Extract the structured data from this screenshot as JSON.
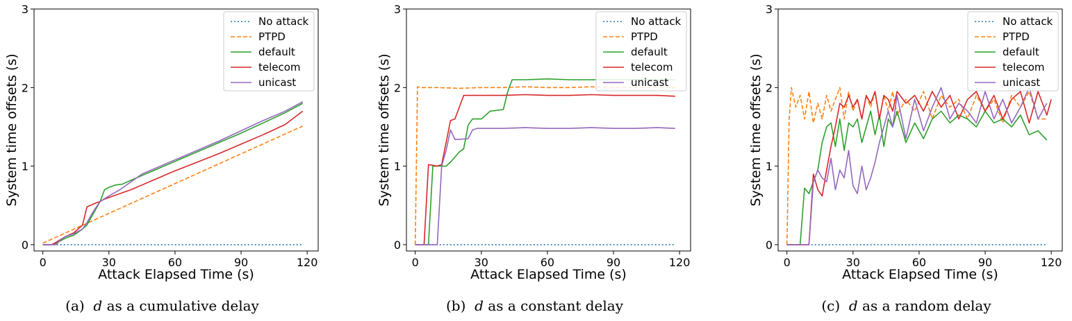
{
  "figure": {
    "series_colors": {
      "No attack": "#1f77b4",
      "PTPD": "#ff7f0e",
      "default": "#2ca02c",
      "telecom": "#d62728",
      "unicast": "#9467bd"
    }
  },
  "chart_data": [
    {
      "type": "line",
      "caption_label": "(a)",
      "caption_var": "d",
      "caption_text": "as a cumulative delay",
      "xlabel": "Attack Elapsed Time (s)",
      "ylabel": "System time offsets (s)",
      "xlim": [
        -4,
        125
      ],
      "ylim": [
        -0.08,
        3
      ],
      "xticks": [
        0,
        30,
        60,
        90,
        120
      ],
      "yticks": [
        0,
        1,
        2,
        3
      ],
      "legend_position": "top-right",
      "series": [
        {
          "name": "No attack",
          "style": "dotted",
          "x": [
            0,
            118
          ],
          "y": [
            0,
            0
          ]
        },
        {
          "name": "PTPD",
          "style": "dashed",
          "x": [
            0,
            118
          ],
          "y": [
            0.02,
            1.51
          ]
        },
        {
          "name": "default",
          "style": "solid",
          "x": [
            0,
            4,
            6,
            10,
            14,
            18,
            20,
            22,
            24,
            26,
            28,
            30,
            33,
            36,
            40,
            45,
            50,
            60,
            70,
            80,
            90,
            100,
            110,
            118
          ],
          "y": [
            0,
            0,
            0.02,
            0.08,
            0.12,
            0.2,
            0.25,
            0.35,
            0.45,
            0.55,
            0.7,
            0.73,
            0.76,
            0.77,
            0.82,
            0.88,
            0.94,
            1.06,
            1.18,
            1.3,
            1.42,
            1.55,
            1.68,
            1.8
          ]
        },
        {
          "name": "telecom",
          "style": "solid",
          "x": [
            0,
            4,
            6,
            10,
            14,
            18,
            20,
            24,
            26,
            28,
            30,
            35,
            40,
            45,
            50,
            60,
            70,
            80,
            90,
            100,
            110,
            118
          ],
          "y": [
            0,
            0,
            0.03,
            0.1,
            0.15,
            0.25,
            0.48,
            0.53,
            0.55,
            0.58,
            0.6,
            0.65,
            0.7,
            0.76,
            0.82,
            0.94,
            1.05,
            1.16,
            1.28,
            1.4,
            1.53,
            1.7
          ]
        },
        {
          "name": "unicast",
          "style": "solid",
          "x": [
            0,
            4,
            6,
            8,
            10,
            14,
            18,
            20,
            22,
            24,
            26,
            30,
            35,
            40,
            45,
            50,
            60,
            70,
            80,
            90,
            100,
            110,
            118
          ],
          "y": [
            0,
            0,
            0,
            0.06,
            0.1,
            0.14,
            0.2,
            0.28,
            0.38,
            0.47,
            0.55,
            0.62,
            0.7,
            0.8,
            0.9,
            0.96,
            1.08,
            1.2,
            1.32,
            1.45,
            1.58,
            1.7,
            1.82
          ]
        }
      ]
    },
    {
      "type": "line",
      "caption_label": "(b)",
      "caption_var": "d",
      "caption_text": "as a constant delay",
      "xlabel": "Attack Elapsed Time (s)",
      "ylabel": "System time offsets (s)",
      "xlim": [
        -4,
        125
      ],
      "ylim": [
        -0.08,
        3
      ],
      "xticks": [
        0,
        30,
        60,
        90,
        120
      ],
      "yticks": [
        0,
        1,
        2,
        3
      ],
      "legend_position": "top-right",
      "series": [
        {
          "name": "No attack",
          "style": "dotted",
          "x": [
            0,
            118
          ],
          "y": [
            0,
            0
          ]
        },
        {
          "name": "PTPD",
          "style": "dashed",
          "x": [
            0,
            1,
            3,
            10,
            20,
            30,
            40,
            50,
            60,
            70,
            80,
            90,
            100,
            110,
            118
          ],
          "y": [
            0,
            2.01,
            2.0,
            2.0,
            1.99,
            2.0,
            2.0,
            2.01,
            2.0,
            2.0,
            2.01,
            2.0,
            2.0,
            2.0,
            2.0
          ]
        },
        {
          "name": "default",
          "style": "solid",
          "x": [
            0,
            6,
            8,
            14,
            16,
            20,
            22,
            24,
            26,
            30,
            32,
            34,
            40,
            42,
            44,
            50,
            60,
            70,
            80,
            90,
            100,
            110,
            118
          ],
          "y": [
            0,
            0,
            1.0,
            1.0,
            1.05,
            1.18,
            1.22,
            1.52,
            1.6,
            1.6,
            1.65,
            1.7,
            1.72,
            1.95,
            2.1,
            2.1,
            2.11,
            2.1,
            2.1,
            2.1,
            2.1,
            2.1,
            2.1
          ]
        },
        {
          "name": "telecom",
          "style": "solid",
          "x": [
            0,
            4,
            6,
            10,
            12,
            14,
            16,
            18,
            20,
            22,
            30,
            40,
            50,
            60,
            70,
            80,
            90,
            100,
            110,
            118
          ],
          "y": [
            0,
            0,
            1.02,
            1.0,
            1.02,
            1.3,
            1.58,
            1.6,
            1.75,
            1.9,
            1.9,
            1.9,
            1.91,
            1.9,
            1.9,
            1.91,
            1.9,
            1.9,
            1.9,
            1.89
          ]
        },
        {
          "name": "unicast",
          "style": "solid",
          "x": [
            0,
            10,
            12,
            14,
            16,
            18,
            20,
            24,
            26,
            28,
            30,
            40,
            50,
            60,
            70,
            80,
            90,
            100,
            110,
            118
          ],
          "y": [
            0,
            0,
            1.0,
            1.2,
            1.46,
            1.34,
            1.34,
            1.35,
            1.46,
            1.48,
            1.48,
            1.48,
            1.49,
            1.48,
            1.48,
            1.49,
            1.48,
            1.48,
            1.49,
            1.48
          ]
        }
      ]
    },
    {
      "type": "line",
      "caption_label": "(c)",
      "caption_var": "d",
      "caption_text": "as a random delay",
      "xlabel": "Attack Elapsed Time (s)",
      "ylabel": "System time offsets (s)",
      "xlim": [
        -4,
        125
      ],
      "ylim": [
        -0.08,
        3
      ],
      "xticks": [
        0,
        30,
        60,
        90,
        120
      ],
      "yticks": [
        0,
        1,
        2,
        3
      ],
      "legend_position": "top-right",
      "series": [
        {
          "name": "No attack",
          "style": "dotted",
          "x": [
            0,
            118
          ],
          "y": [
            0,
            0
          ]
        },
        {
          "name": "PTPD",
          "style": "dashed",
          "x": [
            0,
            1,
            2,
            4,
            6,
            8,
            10,
            12,
            14,
            16,
            18,
            20,
            22,
            24,
            26,
            28,
            30,
            32,
            34,
            36,
            38,
            40,
            42,
            44,
            46,
            48,
            50,
            54,
            58,
            62,
            66,
            70,
            74,
            78,
            82,
            86,
            90,
            94,
            98,
            102,
            106,
            110,
            114,
            118
          ],
          "y": [
            0,
            1.6,
            2.0,
            1.75,
            1.9,
            1.6,
            1.95,
            1.55,
            1.8,
            1.6,
            1.9,
            1.7,
            1.85,
            2.0,
            1.6,
            1.95,
            1.7,
            1.85,
            1.6,
            1.9,
            1.75,
            1.95,
            1.6,
            1.9,
            1.7,
            1.95,
            1.65,
            1.85,
            1.7,
            1.95,
            1.6,
            1.9,
            1.75,
            1.85,
            1.6,
            1.9,
            1.7,
            1.85,
            1.55,
            1.9,
            1.75,
            1.95,
            1.6,
            1.6
          ]
        },
        {
          "name": "default",
          "style": "solid",
          "x": [
            0,
            6,
            8,
            10,
            12,
            14,
            16,
            18,
            20,
            22,
            24,
            26,
            28,
            30,
            32,
            34,
            36,
            38,
            40,
            42,
            44,
            46,
            48,
            50,
            54,
            58,
            62,
            66,
            70,
            74,
            78,
            82,
            86,
            90,
            94,
            98,
            102,
            106,
            110,
            114,
            118
          ],
          "y": [
            0,
            0,
            0.72,
            0.65,
            0.8,
            0.95,
            1.3,
            1.5,
            1.55,
            1.25,
            1.6,
            1.2,
            1.55,
            1.5,
            1.6,
            1.3,
            1.5,
            1.7,
            1.4,
            1.65,
            1.25,
            1.6,
            1.5,
            1.7,
            1.3,
            1.55,
            1.35,
            1.6,
            1.7,
            1.55,
            1.65,
            1.6,
            1.5,
            1.7,
            1.55,
            1.6,
            1.5,
            1.65,
            1.4,
            1.45,
            1.33
          ]
        },
        {
          "name": "telecom",
          "style": "solid",
          "x": [
            0,
            10,
            12,
            14,
            16,
            18,
            20,
            22,
            24,
            26,
            28,
            30,
            32,
            34,
            36,
            38,
            40,
            42,
            44,
            46,
            48,
            50,
            54,
            58,
            62,
            66,
            70,
            74,
            78,
            82,
            86,
            90,
            94,
            98,
            102,
            106,
            110,
            114,
            118,
            120
          ],
          "y": [
            0,
            0,
            0.9,
            0.7,
            0.62,
            0.95,
            1.25,
            1.5,
            1.8,
            1.75,
            1.9,
            1.75,
            1.85,
            1.6,
            1.9,
            1.8,
            1.95,
            1.6,
            1.9,
            1.85,
            1.7,
            1.95,
            1.8,
            1.9,
            1.7,
            1.95,
            1.75,
            1.9,
            1.6,
            1.85,
            1.95,
            1.7,
            1.9,
            1.6,
            1.85,
            1.95,
            1.55,
            1.95,
            1.65,
            1.85
          ]
        },
        {
          "name": "unicast",
          "style": "solid",
          "x": [
            0,
            10,
            12,
            14,
            16,
            18,
            20,
            22,
            24,
            26,
            28,
            30,
            32,
            34,
            36,
            38,
            40,
            42,
            44,
            46,
            48,
            50,
            54,
            58,
            62,
            66,
            70,
            74,
            78,
            82,
            86,
            90,
            94,
            98,
            102,
            106,
            110,
            114,
            118
          ],
          "y": [
            0,
            0,
            0.8,
            0.95,
            0.85,
            0.8,
            1.1,
            0.7,
            0.95,
            0.85,
            1.2,
            0.75,
            0.65,
            1.0,
            0.7,
            0.85,
            1.05,
            1.3,
            1.5,
            1.7,
            1.5,
            1.9,
            1.35,
            1.85,
            1.45,
            1.75,
            2.0,
            1.6,
            1.8,
            1.7,
            1.55,
            1.95,
            1.6,
            1.85,
            1.55,
            1.75,
            2.0,
            1.6,
            1.8
          ]
        }
      ]
    }
  ]
}
